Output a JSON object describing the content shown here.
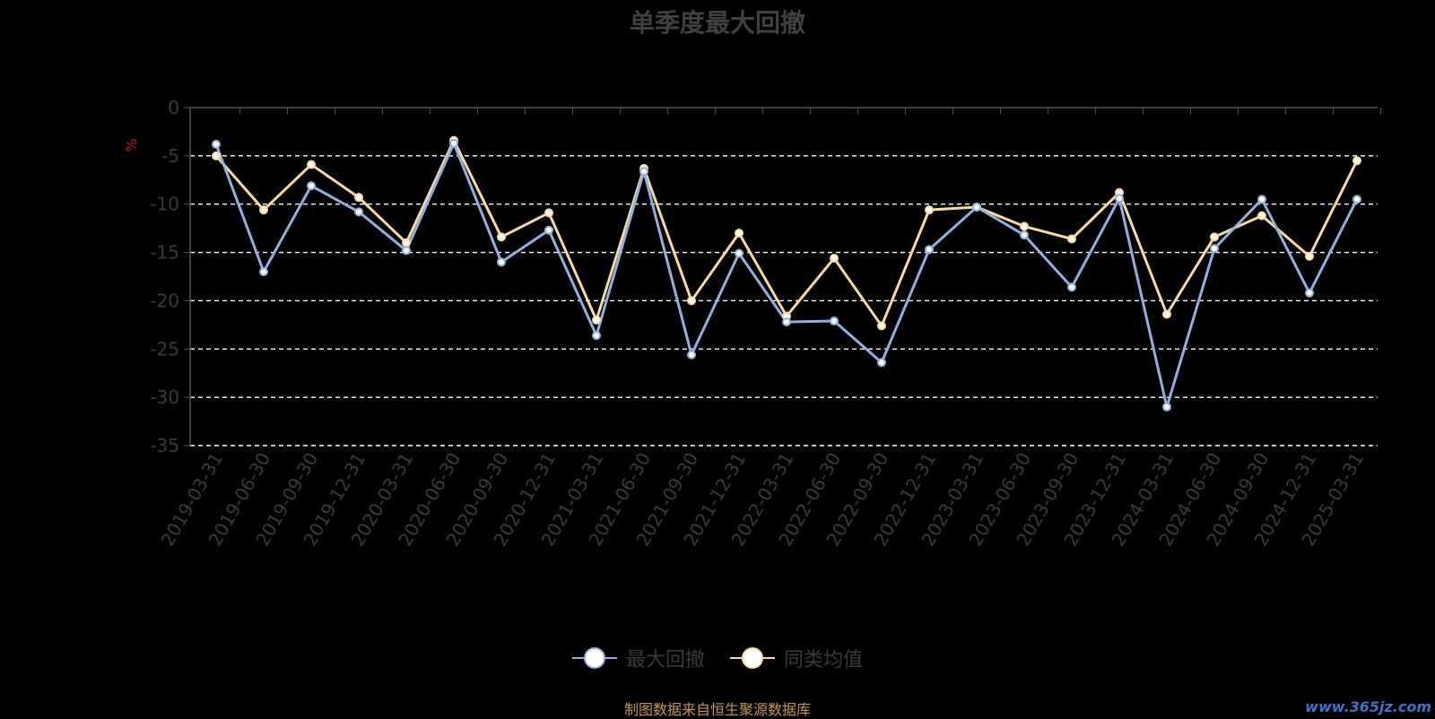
{
  "title": "单季度最大回撤",
  "source_note": "制图数据来自恒生聚源数据库",
  "watermark": "www.365jz.com",
  "chart_data": {
    "type": "line",
    "title": "单季度最大回撤",
    "ylabel": "%",
    "xlabel": "",
    "ylim": [
      -35,
      0
    ],
    "yticks": [
      0,
      -5,
      -10,
      -15,
      -20,
      -25,
      -30,
      -35
    ],
    "grid": true,
    "legend_position": "bottom",
    "categories": [
      "2019-03-31",
      "2019-06-30",
      "2019-09-30",
      "2019-12-31",
      "2020-03-31",
      "2020-06-30",
      "2020-09-30",
      "2020-12-31",
      "2021-03-31",
      "2021-06-30",
      "2021-09-30",
      "2021-12-31",
      "2022-03-31",
      "2022-06-30",
      "2022-09-30",
      "2022-12-31",
      "2023-03-31",
      "2023-06-30",
      "2023-09-30",
      "2023-12-31",
      "2024-03-31",
      "2024-06-30",
      "2024-09-30",
      "2024-12-31",
      "2025-03-31"
    ],
    "series": [
      {
        "name": "最大回撤",
        "color": "#8fb0e0",
        "values": [
          -3.8,
          -17.0,
          -8.1,
          -10.8,
          -14.8,
          -3.7,
          -16.0,
          -12.7,
          -23.6,
          -6.6,
          -25.6,
          -15.1,
          -22.2,
          -22.1,
          -26.4,
          -14.7,
          -10.3,
          -13.2,
          -18.6,
          -9.4,
          -31.0,
          -14.6,
          -9.5,
          -19.2,
          -9.5
        ]
      },
      {
        "name": "同类均值",
        "color": "#fbd99a",
        "values": [
          -5.0,
          -10.6,
          -5.9,
          -9.3,
          -14.0,
          -3.4,
          -13.4,
          -10.9,
          -22.0,
          -6.3,
          -20.0,
          -13.0,
          -21.6,
          -15.6,
          -22.6,
          -10.6,
          -10.3,
          -12.3,
          -13.6,
          -8.8,
          -21.4,
          -13.4,
          -11.2,
          -15.4,
          -5.5
        ]
      }
    ]
  }
}
